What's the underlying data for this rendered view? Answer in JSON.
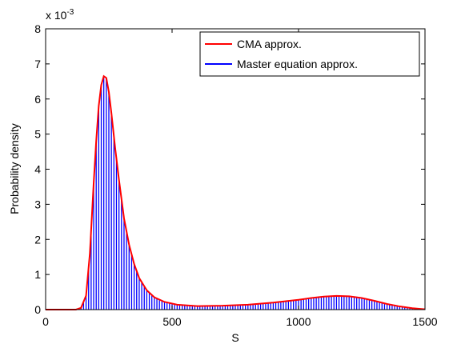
{
  "chart_data": {
    "type": "line",
    "title": "",
    "xlabel": "S",
    "ylabel": "Probability density",
    "xlim": [
      0,
      1500
    ],
    "ylim": [
      0,
      8
    ],
    "y_exponent_label": "x 10",
    "y_exponent_power": "-3",
    "x_ticks": [
      0,
      500,
      1000,
      1500
    ],
    "x_tick_labels": [
      "0",
      "500",
      "1000",
      "1500"
    ],
    "y_ticks": [
      0,
      1,
      2,
      3,
      4,
      5,
      6,
      7,
      8
    ],
    "y_tick_labels": [
      "0",
      "1",
      "2",
      "3",
      "4",
      "5",
      "6",
      "7",
      "8"
    ],
    "grid": false,
    "legend_position": "top-right",
    "series": [
      {
        "name": "CMA approx.",
        "kind": "line",
        "color": "#ff0000",
        "x": [
          120,
          140,
          160,
          175,
          190,
          200,
          210,
          220,
          230,
          240,
          250,
          260,
          275,
          290,
          310,
          330,
          350,
          370,
          400,
          430,
          470,
          520,
          600,
          700,
          800,
          900,
          1000,
          1050,
          1100,
          1150,
          1200,
          1250,
          1300,
          1350,
          1400,
          1450,
          1500
        ],
        "values": [
          0.0,
          0.05,
          0.4,
          1.6,
          3.6,
          4.8,
          5.8,
          6.4,
          6.65,
          6.6,
          6.2,
          5.6,
          4.6,
          3.7,
          2.6,
          1.85,
          1.3,
          0.9,
          0.55,
          0.35,
          0.22,
          0.14,
          0.1,
          0.11,
          0.14,
          0.2,
          0.28,
          0.33,
          0.37,
          0.39,
          0.38,
          0.33,
          0.25,
          0.16,
          0.09,
          0.04,
          0.01
        ]
      },
      {
        "name": "Master equation approx.",
        "kind": "stem",
        "color": "#0000ff",
        "x": [
          120,
          140,
          160,
          175,
          190,
          200,
          210,
          220,
          230,
          240,
          250,
          260,
          275,
          290,
          310,
          330,
          350,
          370,
          400,
          430,
          470,
          520,
          600,
          700,
          800,
          900,
          1000,
          1050,
          1100,
          1150,
          1200,
          1250,
          1300,
          1350,
          1400,
          1450,
          1500
        ],
        "values": [
          0.0,
          0.05,
          0.4,
          1.6,
          3.6,
          4.8,
          5.8,
          6.4,
          6.65,
          6.6,
          6.2,
          5.6,
          4.6,
          3.7,
          2.6,
          1.85,
          1.3,
          0.9,
          0.55,
          0.35,
          0.22,
          0.14,
          0.1,
          0.11,
          0.14,
          0.2,
          0.28,
          0.33,
          0.37,
          0.39,
          0.38,
          0.33,
          0.25,
          0.16,
          0.09,
          0.04,
          0.01
        ],
        "stem_spacing": 10
      }
    ]
  }
}
